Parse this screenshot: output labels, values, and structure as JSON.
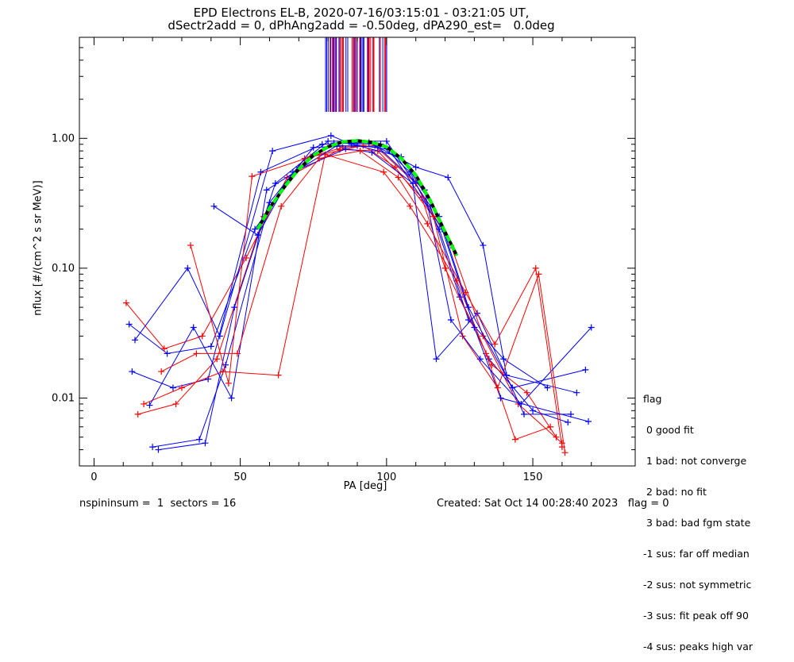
{
  "title_line1": "EPD Electrons EL-B, 2020-07-16/03:15:01 - 03:21:05 UT,",
  "title_line2": "dSectr2add = 0, dPhAng2add = -0.50deg, dPA290_est=   0.0deg",
  "footer_left": "nspininsum =  1  sectors = 16",
  "footer_right": "Created: Sat Oct 14 00:28:40 2023   flag = 0",
  "legend": {
    "title": "flag",
    "items": [
      " 0 good fit",
      " 1 bad: not converge",
      " 2 bad: no fit",
      " 3 bad: bad fgm state",
      "-1 sus: far off median",
      "-2 sus: not symmetric",
      "-3 sus: fit peak off 90",
      "-4 sus: peaks high var"
    ]
  },
  "chart_data": {
    "type": "line",
    "xlabel": "PA [deg]",
    "ylabel": "nflux [#/(cm^2 s sr MeV)]",
    "xlim": [
      -5,
      185
    ],
    "ylim": [
      0.003,
      6.0
    ],
    "yscale": "log",
    "x_ticks": [
      0,
      50,
      100,
      150
    ],
    "y_ticks": [
      0.01,
      0.1,
      1.0
    ],
    "y_tick_labels": [
      "0.01",
      "0.10",
      "1.00"
    ],
    "colors": {
      "series_a": "#0000ff",
      "series_b": "#ff0000",
      "fit": "#00ff00"
    },
    "series": [
      {
        "color": "blue",
        "points": [
          [
            12,
            0.037
          ],
          [
            25,
            0.022
          ],
          [
            40,
            0.025
          ],
          [
            55,
            0.2
          ],
          [
            70,
            0.6
          ],
          [
            82,
            0.92
          ],
          [
            98,
            0.9
          ],
          [
            108,
            0.55
          ],
          [
            118,
            0.2
          ],
          [
            128,
            0.04
          ],
          [
            140,
            0.02
          ],
          [
            155,
            0.012
          ]
        ]
      },
      {
        "color": "red",
        "points": [
          [
            15,
            0.0075
          ],
          [
            28,
            0.009
          ],
          [
            42,
            0.02
          ],
          [
            58,
            0.25
          ],
          [
            72,
            0.7
          ],
          [
            85,
            0.85
          ],
          [
            96,
            0.88
          ],
          [
            110,
            0.45
          ],
          [
            122,
            0.15
          ],
          [
            133,
            0.03
          ],
          [
            145,
            0.009
          ],
          [
            160,
            0.0045
          ]
        ]
      },
      {
        "color": "blue",
        "points": [
          [
            22,
            0.004
          ],
          [
            38,
            0.0045
          ],
          [
            48,
            0.05
          ],
          [
            62,
            0.45
          ],
          [
            80,
            0.95
          ],
          [
            100,
            0.95
          ],
          [
            115,
            0.3
          ],
          [
            125,
            0.06
          ],
          [
            135,
            0.02
          ],
          [
            150,
            0.008
          ],
          [
            162,
            0.0065
          ]
        ]
      },
      {
        "color": "red",
        "points": [
          [
            11,
            0.054
          ],
          [
            24,
            0.024
          ],
          [
            37,
            0.03
          ],
          [
            52,
            0.12
          ],
          [
            66,
            0.5
          ],
          [
            84,
            0.82
          ],
          [
            97,
            0.8
          ],
          [
            112,
            0.35
          ],
          [
            120,
            0.1
          ],
          [
            136,
            0.018
          ],
          [
            148,
            0.011
          ],
          [
            158,
            0.005
          ]
        ]
      },
      {
        "color": "blue",
        "points": [
          [
            20,
            0.0042
          ],
          [
            36,
            0.0048
          ],
          [
            45,
            0.018
          ],
          [
            60,
            0.32
          ],
          [
            75,
            0.85
          ],
          [
            90,
            0.88
          ],
          [
            105,
            0.72
          ],
          [
            118,
            0.25
          ],
          [
            128,
            0.05
          ],
          [
            143,
            0.012
          ],
          [
            168,
            0.0165
          ]
        ]
      },
      {
        "color": "blue",
        "points": [
          [
            13,
            0.016
          ],
          [
            27,
            0.012
          ],
          [
            39,
            0.014
          ],
          [
            57,
            0.55
          ],
          [
            78,
            0.9
          ],
          [
            94,
            0.93
          ],
          [
            110,
            0.6
          ],
          [
            121,
            0.5
          ],
          [
            133,
            0.15
          ],
          [
            141,
            0.015
          ],
          [
            165,
            0.011
          ]
        ]
      },
      {
        "color": "red",
        "points": [
          [
            17,
            0.009
          ],
          [
            30,
            0.012
          ],
          [
            44,
            0.016
          ],
          [
            63,
            0.015
          ],
          [
            79,
            0.75
          ],
          [
            99,
            0.55
          ],
          [
            108,
            0.3
          ],
          [
            124,
            0.08
          ],
          [
            134,
            0.022
          ],
          [
            144,
            0.0048
          ],
          [
            156,
            0.006
          ]
        ]
      },
      {
        "color": "blue",
        "points": [
          [
            14,
            0.028
          ],
          [
            32,
            0.1
          ],
          [
            43,
            0.03
          ],
          [
            61,
            0.8
          ],
          [
            81,
            1.05
          ],
          [
            88,
            0.9
          ],
          [
            101,
            0.82
          ],
          [
            119,
            0.2
          ],
          [
            130,
            0.035
          ],
          [
            139,
            0.01
          ],
          [
            169,
            0.0066
          ]
        ]
      },
      {
        "color": "red",
        "points": [
          [
            33,
            0.15
          ],
          [
            46,
            0.013
          ],
          [
            54,
            0.51
          ],
          [
            74,
            0.72
          ],
          [
            92,
            0.88
          ],
          [
            103,
            0.6
          ],
          [
            116,
            0.25
          ],
          [
            126,
            0.03
          ],
          [
            138,
            0.012
          ],
          [
            152,
            0.09
          ],
          [
            161,
            0.0038
          ]
        ]
      },
      {
        "color": "blue",
        "points": [
          [
            19,
            0.0088
          ],
          [
            34,
            0.035
          ],
          [
            47,
            0.01
          ],
          [
            59,
            0.4
          ],
          [
            83,
            0.88
          ],
          [
            97,
            0.86
          ],
          [
            113,
            0.4
          ],
          [
            122,
            0.04
          ],
          [
            132,
            0.02
          ],
          [
            146,
            0.009
          ],
          [
            170,
            0.035
          ]
        ]
      },
      {
        "color": "blue",
        "points": [
          [
            41,
            0.3
          ],
          [
            56,
            0.18
          ],
          [
            68,
            0.55
          ],
          [
            86,
            0.83
          ],
          [
            95,
            0.78
          ],
          [
            109,
            0.45
          ],
          [
            117,
            0.02
          ],
          [
            131,
            0.045
          ],
          [
            147,
            0.0075
          ],
          [
            163,
            0.0075
          ]
        ]
      },
      {
        "color": "red",
        "points": [
          [
            23,
            0.016
          ],
          [
            35,
            0.022
          ],
          [
            49,
            0.022
          ],
          [
            64,
            0.3
          ],
          [
            77,
            0.7
          ],
          [
            91,
            0.8
          ],
          [
            104,
            0.5
          ],
          [
            114,
            0.22
          ],
          [
            127,
            0.065
          ],
          [
            137,
            0.026
          ],
          [
            151,
            0.1
          ],
          [
            160,
            0.0042
          ]
        ]
      }
    ],
    "fit_curve": {
      "color": "green",
      "points": [
        [
          56,
          0.2
        ],
        [
          60,
          0.29
        ],
        [
          65,
          0.42
        ],
        [
          70,
          0.58
        ],
        [
          75,
          0.74
        ],
        [
          80,
          0.86
        ],
        [
          85,
          0.94
        ],
        [
          90,
          0.96
        ],
        [
          95,
          0.93
        ],
        [
          100,
          0.86
        ],
        [
          105,
          0.7
        ],
        [
          110,
          0.52
        ],
        [
          115,
          0.33
        ],
        [
          120,
          0.19
        ],
        [
          124,
          0.125
        ]
      ]
    }
  }
}
